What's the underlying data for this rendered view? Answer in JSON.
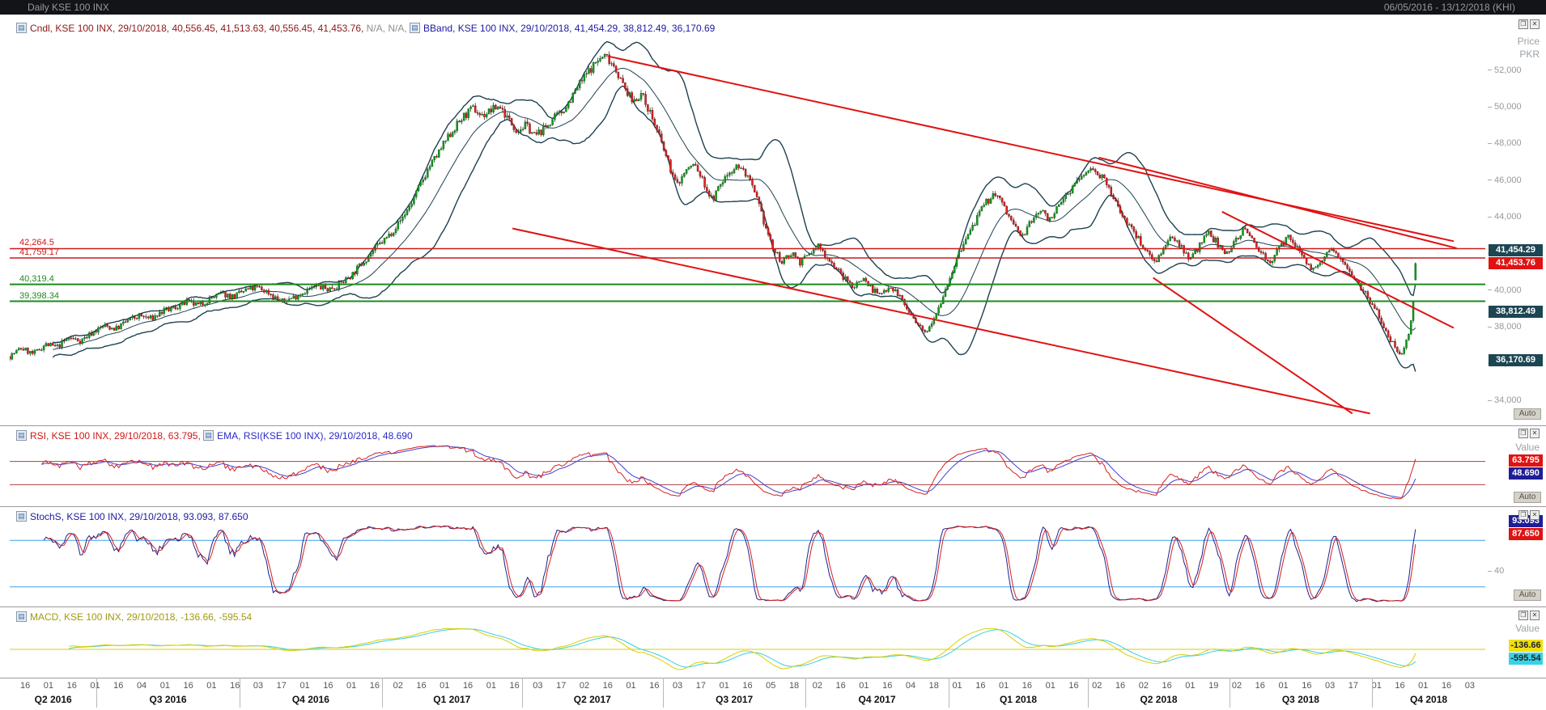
{
  "window": {
    "title": "Daily KSE 100 INX",
    "date_range": "06/05/2016 - 13/12/2018 (KHI)"
  },
  "icons": {
    "indicator": "▤",
    "restore": "❐",
    "close": "✕"
  },
  "colors": {
    "candle_up": "#12a11f",
    "candle_up_stroke": "#06600e",
    "candle_down": "#e42222",
    "candle_down_stroke": "#7d0d0d",
    "wick": "#1c1c1c",
    "bollinger": "#1e4150",
    "trend": "#e01212",
    "rsi": "#d42020",
    "rsi_ema": "#4040cc",
    "rsi_ref": "#a84040",
    "stoch_k": "#20208a",
    "stoch_d": "#d42020",
    "stoch_ref": "#3fa0e8",
    "macd": "#d8cf00",
    "macd_signal": "#38cfe2",
    "macd_zero": "#d8cf00"
  },
  "main_panel": {
    "legend": [
      {
        "icon": true,
        "text": "Cndl, KSE 100 INX, 29/10/2018, 40,556.45, 41,513.63, 40,556.45, 41,453.76,",
        "color": "#8c1616"
      },
      {
        "icon": false,
        "text": " N/A, N/A, ",
        "color": "#8f8f8f"
      },
      {
        "icon": true,
        "text": "BBand, KSE 100 INX, 29/10/2018, 41,454.29, 38,812.49, 36,170.69",
        "color": "#1b1ba0"
      }
    ],
    "y_axis": {
      "title_line1": "Price",
      "title_line2": "PKR",
      "ticks": [
        "52,000",
        "50,000",
        "48,000",
        "46,000",
        "44,000",
        "42,000",
        "40,000",
        "38,000",
        "36,000",
        "34,000"
      ]
    },
    "auto_label": "Auto",
    "hlines": [
      {
        "label": "42,264.5",
        "color": "#cc1a1a",
        "width": 1.5
      },
      {
        "label": "41,759.17",
        "color": "#cc1a1a",
        "width": 1.5
      },
      {
        "label": "40,319.4",
        "color": "#1e8a1e",
        "width": 2
      },
      {
        "label": "39,398.34",
        "color": "#1e8a1e",
        "width": 2
      }
    ],
    "badges": [
      {
        "text": "41,454.29",
        "bg": "#1d4653",
        "fg": "#ffffff"
      },
      {
        "text": "41,453.76",
        "bg": "#e01212",
        "fg": "#ffffff"
      },
      {
        "text": "38,812.49",
        "bg": "#1d4653",
        "fg": "#ffffff"
      },
      {
        "text": "36,170.69",
        "bg": "#1d4653",
        "fg": "#ffffff"
      }
    ]
  },
  "rsi_panel": {
    "legend": [
      {
        "icon": true,
        "text": "RSI, KSE 100 INX, 29/10/2018, 63.795, ",
        "color": "#d01818"
      },
      {
        "icon": true,
        "text": "EMA, RSI(KSE 100 INX), 29/10/2018, 48.690",
        "color": "#2a2ac8"
      }
    ],
    "value_label": "Value",
    "auto_label": "Auto",
    "badges": [
      {
        "text": "63.795",
        "bg": "#e01212",
        "fg": "#ffffff"
      },
      {
        "text": "48.690",
        "bg": "#1e1e96",
        "fg": "#ffffff"
      }
    ]
  },
  "stoch_panel": {
    "legend": [
      {
        "icon": true,
        "text": "StochS, KSE 100 INX, 29/10/2018, 93.093, 87.650",
        "color": "#1b1ba0"
      }
    ],
    "tick_label": "40",
    "auto_label": "Auto",
    "badges": [
      {
        "text": "93.093",
        "bg": "#1e1e96",
        "fg": "#ffffff"
      },
      {
        "text": "87.650",
        "bg": "#e01212",
        "fg": "#ffffff"
      }
    ]
  },
  "macd_panel": {
    "legend": [
      {
        "icon": true,
        "text": "MACD, KSE 100 INX, 29/10/2018, -136.66, -595.54",
        "color": "#a09a10"
      }
    ],
    "value_label": "Value",
    "badges": [
      {
        "text": "-136.66",
        "bg": "#f0e010",
        "fg": "#222222"
      },
      {
        "text": "-595.54",
        "bg": "#38d2e6",
        "fg": "#222222"
      }
    ]
  },
  "x_axis": {
    "ticks": [
      "16",
      "01",
      "16",
      "01",
      "16",
      "04",
      "01",
      "16",
      "01",
      "16",
      "03",
      "17",
      "01",
      "16",
      "01",
      "16",
      "02",
      "16",
      "01",
      "16",
      "01",
      "16",
      "03",
      "17",
      "02",
      "16",
      "01",
      "16",
      "03",
      "17",
      "01",
      "16",
      "05",
      "18",
      "02",
      "16",
      "01",
      "16",
      "04",
      "18",
      "01",
      "16",
      "01",
      "16",
      "01",
      "16",
      "02",
      "16",
      "02",
      "16",
      "01",
      "19",
      "02",
      "16",
      "01",
      "16",
      "03",
      "17",
      "01",
      "16",
      "01",
      "16",
      "03"
    ],
    "quarters": [
      "Q2 2016",
      "Q3 2016",
      "Q4 2016",
      "Q1 2017",
      "Q2 2017",
      "Q3 2017",
      "Q4 2017",
      "Q1 2018",
      "Q2 2018",
      "Q3 2018",
      "Q4 2018"
    ],
    "quarter_boundaries_days": [
      0,
      56,
      148,
      240,
      330,
      421,
      513,
      605,
      695,
      786,
      878,
      951
    ],
    "total_days": 951
  },
  "chart_data": {
    "type": "candlestick",
    "symbol": "KSE 100 INX",
    "interval": "Daily",
    "range": {
      "start": "06/05/2016",
      "end": "13/12/2018"
    },
    "last_candle": {
      "date": "29/10/2018",
      "open": 40556.45,
      "high": 41513.63,
      "low": 40556.45,
      "close": 41453.76
    },
    "bollinger_last": {
      "upper": 41454.29,
      "middle": 38812.49,
      "lower": 36170.69
    },
    "rsi_last": 63.795,
    "rsi_ema_last": 48.69,
    "stoch_last": {
      "k": 93.093,
      "d": 87.65
    },
    "macd_last": {
      "macd": -136.66,
      "signal": -595.54
    },
    "price_axis_ticks": [
      52000,
      50000,
      48000,
      46000,
      44000,
      42000,
      40000,
      38000,
      36000,
      34000
    ],
    "support_resistance_levels": [
      42264.5,
      41759.17,
      40319.4,
      39398.34
    ],
    "trend_lines": [
      [
        0.4055,
        52750,
        0.9786,
        42670
      ],
      [
        0.3407,
        43365,
        0.9219,
        33280
      ],
      [
        0.7381,
        47230,
        0.9806,
        42290
      ],
      [
        0.8216,
        44277,
        0.9786,
        37945
      ],
      [
        0.7749,
        40682,
        0.9099,
        33280
      ]
    ],
    "price_anchors": [
      [
        0,
        36400
      ],
      [
        0.008,
        36850
      ],
      [
        0.016,
        36500
      ],
      [
        0.024,
        37050
      ],
      [
        0.032,
        36900
      ],
      [
        0.04,
        37400
      ],
      [
        0.048,
        37250
      ],
      [
        0.056,
        37700
      ],
      [
        0.064,
        38050
      ],
      [
        0.072,
        37900
      ],
      [
        0.08,
        38350
      ],
      [
        0.088,
        38600
      ],
      [
        0.096,
        38450
      ],
      [
        0.104,
        38850
      ],
      [
        0.112,
        39050
      ],
      [
        0.12,
        39350
      ],
      [
        0.128,
        39150
      ],
      [
        0.136,
        39550
      ],
      [
        0.144,
        39800
      ],
      [
        0.152,
        39650
      ],
      [
        0.16,
        40000
      ],
      [
        0.168,
        40150
      ],
      [
        0.176,
        39850
      ],
      [
        0.184,
        39350
      ],
      [
        0.192,
        39600
      ],
      [
        0.2,
        39950
      ],
      [
        0.208,
        40200
      ],
      [
        0.216,
        40050
      ],
      [
        0.224,
        40350
      ],
      [
        0.232,
        40850
      ],
      [
        0.24,
        41600
      ],
      [
        0.248,
        42300
      ],
      [
        0.256,
        42900
      ],
      [
        0.264,
        43700
      ],
      [
        0.272,
        44700
      ],
      [
        0.278,
        45700
      ],
      [
        0.284,
        46700
      ],
      [
        0.29,
        47400
      ],
      [
        0.296,
        48200
      ],
      [
        0.302,
        48900
      ],
      [
        0.308,
        49500
      ],
      [
        0.314,
        49900
      ],
      [
        0.32,
        49500
      ],
      [
        0.326,
        49800
      ],
      [
        0.332,
        50050
      ],
      [
        0.338,
        49300
      ],
      [
        0.344,
        48700
      ],
      [
        0.35,
        49000
      ],
      [
        0.356,
        48400
      ],
      [
        0.362,
        48800
      ],
      [
        0.368,
        49300
      ],
      [
        0.374,
        49700
      ],
      [
        0.38,
        50400
      ],
      [
        0.386,
        51200
      ],
      [
        0.392,
        51900
      ],
      [
        0.398,
        52500
      ],
      [
        0.404,
        52800
      ],
      [
        0.41,
        52200
      ],
      [
        0.416,
        51100
      ],
      [
        0.422,
        50300
      ],
      [
        0.428,
        50700
      ],
      [
        0.434,
        49700
      ],
      [
        0.44,
        48400
      ],
      [
        0.446,
        47000
      ],
      [
        0.452,
        45700
      ],
      [
        0.458,
        46500
      ],
      [
        0.464,
        46900
      ],
      [
        0.47,
        45900
      ],
      [
        0.476,
        44900
      ],
      [
        0.482,
        45800
      ],
      [
        0.488,
        46500
      ],
      [
        0.494,
        46800
      ],
      [
        0.5,
        46200
      ],
      [
        0.506,
        45000
      ],
      [
        0.512,
        43500
      ],
      [
        0.518,
        42100
      ],
      [
        0.524,
        41500
      ],
      [
        0.53,
        42100
      ],
      [
        0.536,
        41500
      ],
      [
        0.542,
        42000
      ],
      [
        0.548,
        42400
      ],
      [
        0.554,
        41800
      ],
      [
        0.56,
        41200
      ],
      [
        0.566,
        40600
      ],
      [
        0.572,
        40200
      ],
      [
        0.578,
        40700
      ],
      [
        0.584,
        40100
      ],
      [
        0.59,
        39700
      ],
      [
        0.596,
        40300
      ],
      [
        0.602,
        39800
      ],
      [
        0.608,
        39000
      ],
      [
        0.614,
        38200
      ],
      [
        0.62,
        37650
      ],
      [
        0.626,
        38500
      ],
      [
        0.632,
        39600
      ],
      [
        0.638,
        40900
      ],
      [
        0.644,
        42100
      ],
      [
        0.65,
        43100
      ],
      [
        0.656,
        44000
      ],
      [
        0.662,
        44800
      ],
      [
        0.668,
        45300
      ],
      [
        0.674,
        44500
      ],
      [
        0.68,
        43600
      ],
      [
        0.686,
        42900
      ],
      [
        0.692,
        43700
      ],
      [
        0.698,
        44400
      ],
      [
        0.704,
        43900
      ],
      [
        0.71,
        44400
      ],
      [
        0.716,
        45200
      ],
      [
        0.722,
        45800
      ],
      [
        0.728,
        46300
      ],
      [
        0.734,
        46700
      ],
      [
        0.74,
        46200
      ],
      [
        0.746,
        45300
      ],
      [
        0.752,
        44400
      ],
      [
        0.758,
        43600
      ],
      [
        0.764,
        42900
      ],
      [
        0.77,
        42200
      ],
      [
        0.776,
        41600
      ],
      [
        0.782,
        42200
      ],
      [
        0.788,
        42900
      ],
      [
        0.794,
        42400
      ],
      [
        0.8,
        41700
      ],
      [
        0.806,
        42400
      ],
      [
        0.812,
        43100
      ],
      [
        0.818,
        42600
      ],
      [
        0.824,
        41900
      ],
      [
        0.83,
        42700
      ],
      [
        0.836,
        43300
      ],
      [
        0.842,
        42800
      ],
      [
        0.848,
        42100
      ],
      [
        0.854,
        41500
      ],
      [
        0.86,
        42200
      ],
      [
        0.866,
        42900
      ],
      [
        0.872,
        42400
      ],
      [
        0.878,
        41700
      ],
      [
        0.884,
        41000
      ],
      [
        0.89,
        41600
      ],
      [
        0.896,
        42300
      ],
      [
        0.902,
        41800
      ],
      [
        0.908,
        41100
      ],
      [
        0.914,
        40400
      ],
      [
        0.92,
        39700
      ],
      [
        0.926,
        38900
      ],
      [
        0.931,
        38100
      ],
      [
        0.936,
        37300
      ],
      [
        0.94,
        36800
      ],
      [
        0.944,
        36550
      ],
      [
        0.948,
        37500
      ],
      [
        0.951,
        39300
      ],
      [
        0.9527,
        41454
      ]
    ]
  }
}
